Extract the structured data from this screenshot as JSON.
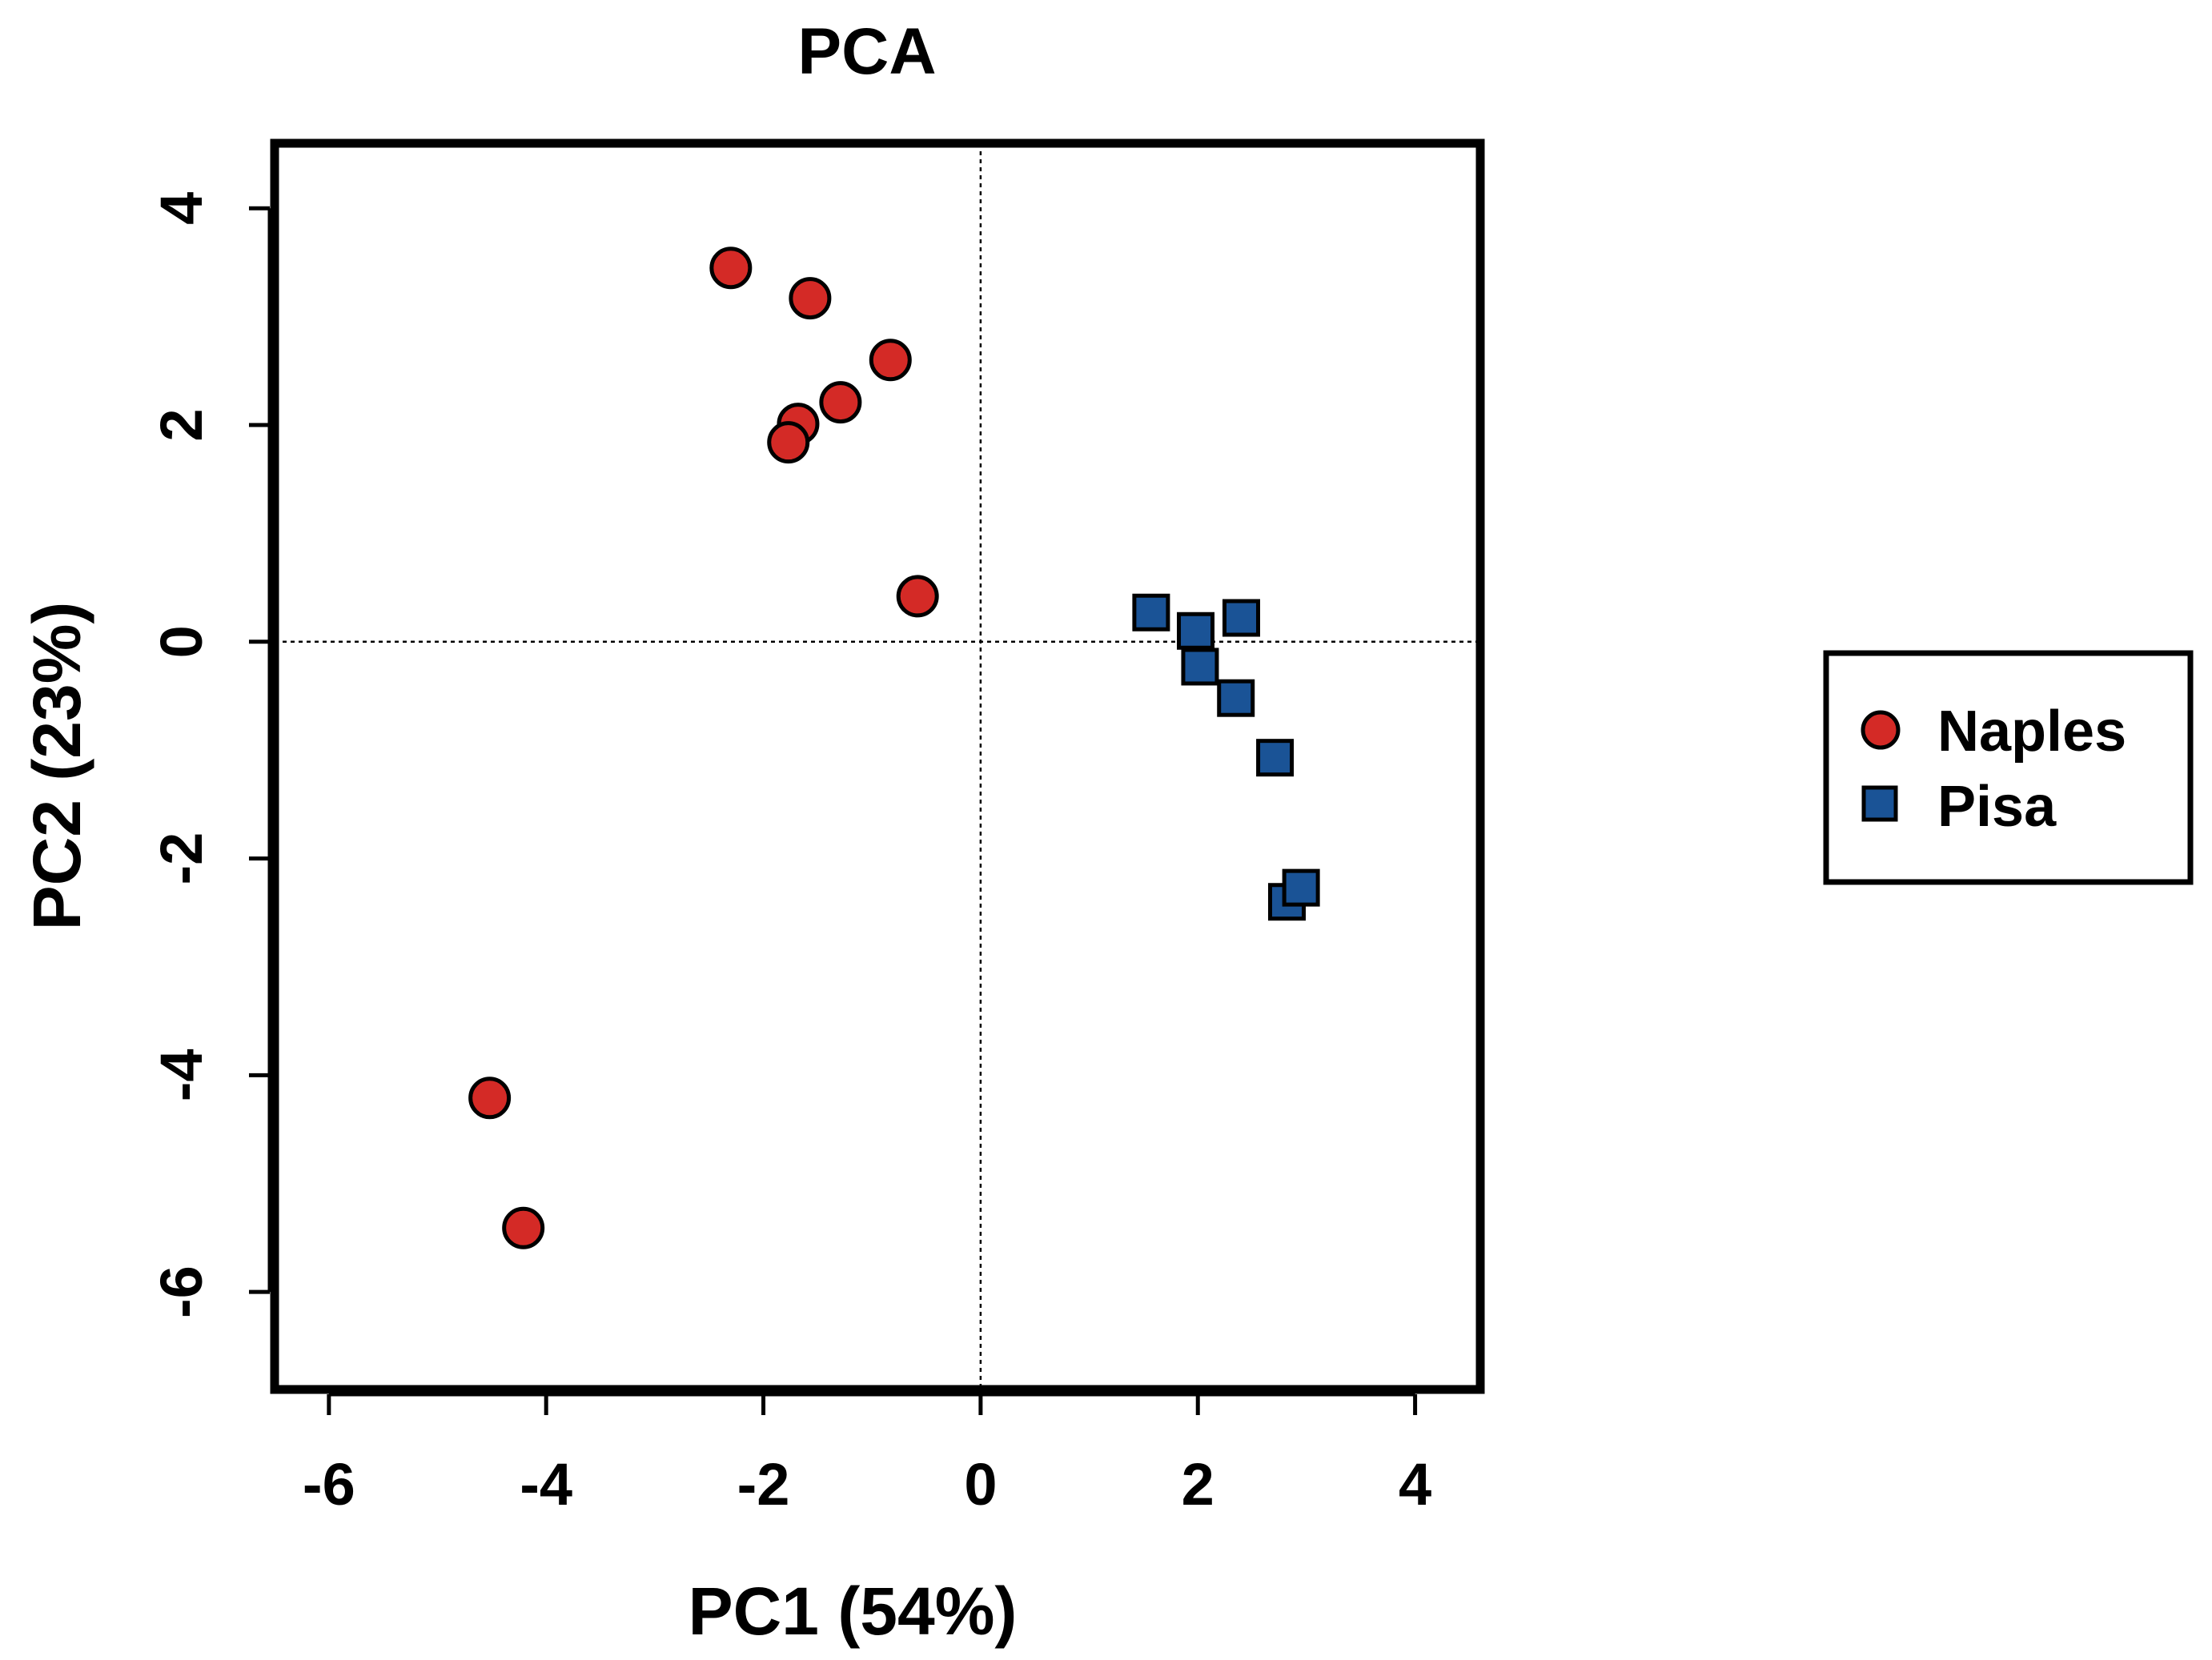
{
  "chart_data": {
    "type": "scatter",
    "title": "PCA",
    "xlabel": "PC1 (54%)",
    "ylabel": "PC2 (23%)",
    "xlim": [
      -6.5,
      4.6
    ],
    "ylim": [
      -6.9,
      4.6
    ],
    "xticks": [
      -6,
      -4,
      -2,
      0,
      2,
      4
    ],
    "yticks": [
      -6,
      -4,
      -2,
      0,
      2,
      4
    ],
    "xtick_labels": [
      "-6",
      "-4",
      "-2",
      "0",
      "2",
      "4"
    ],
    "ytick_labels": [
      "-6",
      "-4",
      "-2",
      "0",
      "2",
      "4"
    ],
    "reference_lines": {
      "x": 0,
      "y": 0,
      "style": "dotted"
    },
    "grid": false,
    "legend_position": "right",
    "series": [
      {
        "name": "Naples",
        "marker": "circle",
        "color": "#d42a26",
        "points": [
          {
            "x": -2.3,
            "y": 3.45
          },
          {
            "x": -1.57,
            "y": 3.17
          },
          {
            "x": -0.83,
            "y": 2.6
          },
          {
            "x": -1.68,
            "y": 2.01
          },
          {
            "x": -1.29,
            "y": 2.21
          },
          {
            "x": -1.77,
            "y": 1.84
          },
          {
            "x": -0.58,
            "y": 0.42
          },
          {
            "x": -4.52,
            "y": -4.21
          },
          {
            "x": -4.21,
            "y": -5.41
          }
        ]
      },
      {
        "name": "Pisa",
        "marker": "square",
        "color": "#1a5396",
        "points": [
          {
            "x": 1.57,
            "y": 0.27
          },
          {
            "x": 1.98,
            "y": 0.1
          },
          {
            "x": 2.4,
            "y": 0.22
          },
          {
            "x": 2.02,
            "y": -0.23
          },
          {
            "x": 2.35,
            "y": -0.52
          },
          {
            "x": 2.71,
            "y": -1.07
          },
          {
            "x": 2.82,
            "y": -2.4
          },
          {
            "x": 2.95,
            "y": -2.27
          }
        ]
      }
    ]
  }
}
